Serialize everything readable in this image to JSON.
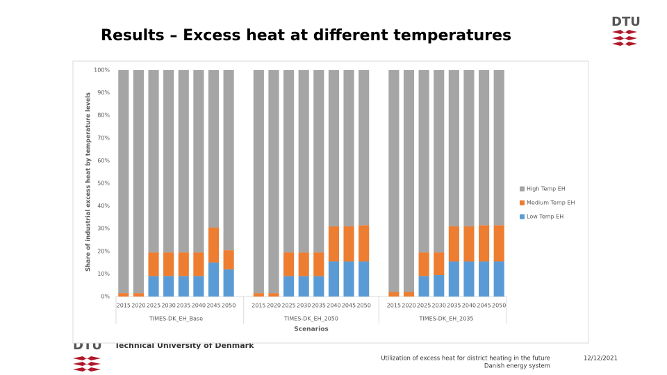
{
  "slide": {
    "title": "Results – Excess heat at different temperatures",
    "logo_text": "DTU",
    "institution": "Technical University of Denmark",
    "footer_lines": [
      "Utilization of excess heat for district heating in the future",
      "Danish energy system"
    ],
    "date": "12/12/2021"
  },
  "chart_data": {
    "type": "bar",
    "stacked": true,
    "ylabel": "Share of industrial excess heat by temperature levels",
    "xlabel": "Scenarios",
    "categories": [
      "2015",
      "2020",
      "2025",
      "2030",
      "2035",
      "2040",
      "2045",
      "2050",
      "2015",
      "2020",
      "2025",
      "2030",
      "2035",
      "2040",
      "2045",
      "2050",
      "2015",
      "2020",
      "2025",
      "2030",
      "2035",
      "2040",
      "2045",
      "2050"
    ],
    "groups": [
      "TIMES-DK_EH_Base",
      "TIMES-DK_EH_2050",
      "TIMES-DK_EH_2035"
    ],
    "series": [
      {
        "name": "Low Temp EH",
        "color": "#5b9bd5",
        "values": [
          0,
          0,
          9,
          9,
          9,
          9,
          15,
          12,
          0,
          0,
          9,
          9,
          9,
          15.5,
          15.5,
          15.5,
          0,
          0,
          9,
          9.5,
          15.5,
          15.5,
          15.5,
          15.5
        ]
      },
      {
        "name": "Medium Temp EH",
        "color": "#ed7d31",
        "values": [
          1.5,
          1.5,
          10.5,
          10.5,
          10.5,
          10.5,
          15.5,
          8.5,
          1.5,
          1.5,
          10.5,
          10.5,
          10.5,
          15.5,
          15.5,
          16,
          2,
          2,
          10.5,
          10,
          15.5,
          15.5,
          16,
          16
        ]
      },
      {
        "name": "High Temp EH",
        "color": "#a5a5a5",
        "values": [
          98.5,
          98.5,
          80.5,
          80.5,
          80.5,
          80.5,
          69.5,
          79.5,
          98.5,
          98.5,
          80.5,
          80.5,
          80.5,
          69,
          69,
          68.5,
          98,
          98,
          80.5,
          80.5,
          69,
          69,
          68.5,
          68.5
        ]
      }
    ],
    "ylim": [
      0,
      100
    ],
    "yticks": [
      {
        "value": 0,
        "label": "0%"
      },
      {
        "value": 10,
        "label": "10%"
      },
      {
        "value": 20,
        "label": "20%"
      },
      {
        "value": 30,
        "label": "30%"
      },
      {
        "value": 40,
        "label": "40%"
      },
      {
        "value": 50,
        "label": "50%"
      },
      {
        "value": 60,
        "label": "60%"
      },
      {
        "value": 70,
        "label": "70%"
      },
      {
        "value": 80,
        "label": "80%"
      },
      {
        "value": 90,
        "label": "90%"
      },
      {
        "value": 100,
        "label": "100%"
      }
    ],
    "legend": "right"
  }
}
